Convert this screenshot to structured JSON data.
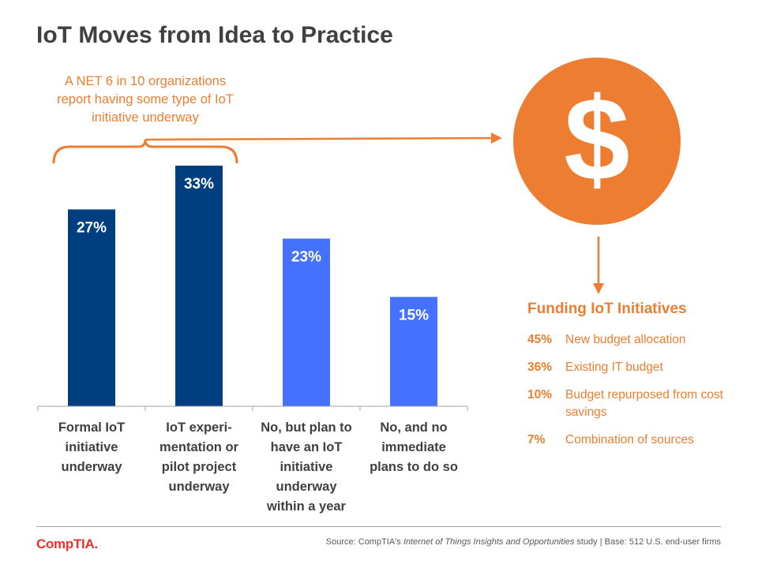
{
  "title": "IoT Moves from Idea to Practice",
  "callout": "A NET 6 in 10 organizations report having some type of IoT initiative underway",
  "colors": {
    "dark_bar": "#003f7f",
    "light_bar": "#4472ff",
    "accent": "#ed7d31",
    "text": "#404040"
  },
  "coin_icon": "dollar-sign-icon",
  "coin_symbol": "$",
  "chart_data": {
    "type": "bar",
    "categories": [
      "Formal IoT initiative underway",
      "IoT experi-mentation or pilot project underway",
      "No, but plan to have an IoT initiative underway within a year",
      "No, and no immediate plans to do so"
    ],
    "values": [
      27,
      33,
      23,
      15
    ],
    "value_labels": [
      "27%",
      "33%",
      "23%",
      "15%"
    ],
    "bar_colors": [
      "#003f7f",
      "#003f7f",
      "#4472ff",
      "#4472ff"
    ],
    "ylim": [
      0,
      33
    ],
    "grid": false,
    "category_label_lines": [
      [
        "Formal IoT",
        "initiative",
        "underway"
      ],
      [
        "IoT experi-",
        "mentation or",
        "pilot project",
        "underway"
      ],
      [
        "No, but plan to",
        "have an IoT",
        "initiative",
        "underway",
        "within a year"
      ],
      [
        "No, and no",
        "immediate",
        "plans to do so"
      ]
    ]
  },
  "funding": {
    "title": "Funding IoT Initiatives",
    "items": [
      {
        "pct": "45%",
        "label": "New budget allocation"
      },
      {
        "pct": "36%",
        "label": "Existing IT budget"
      },
      {
        "pct": "10%",
        "label": "Budget repurposed from cost savings"
      },
      {
        "pct": "7%",
        "label": "Combination of sources"
      }
    ]
  },
  "footer": {
    "logo": "CompTIA.",
    "source_prefix": "Source: CompTIA's ",
    "source_study": "Internet of Things Insights and Opportunities",
    "source_suffix": " study | Base: 512 U.S. end-user firms"
  }
}
